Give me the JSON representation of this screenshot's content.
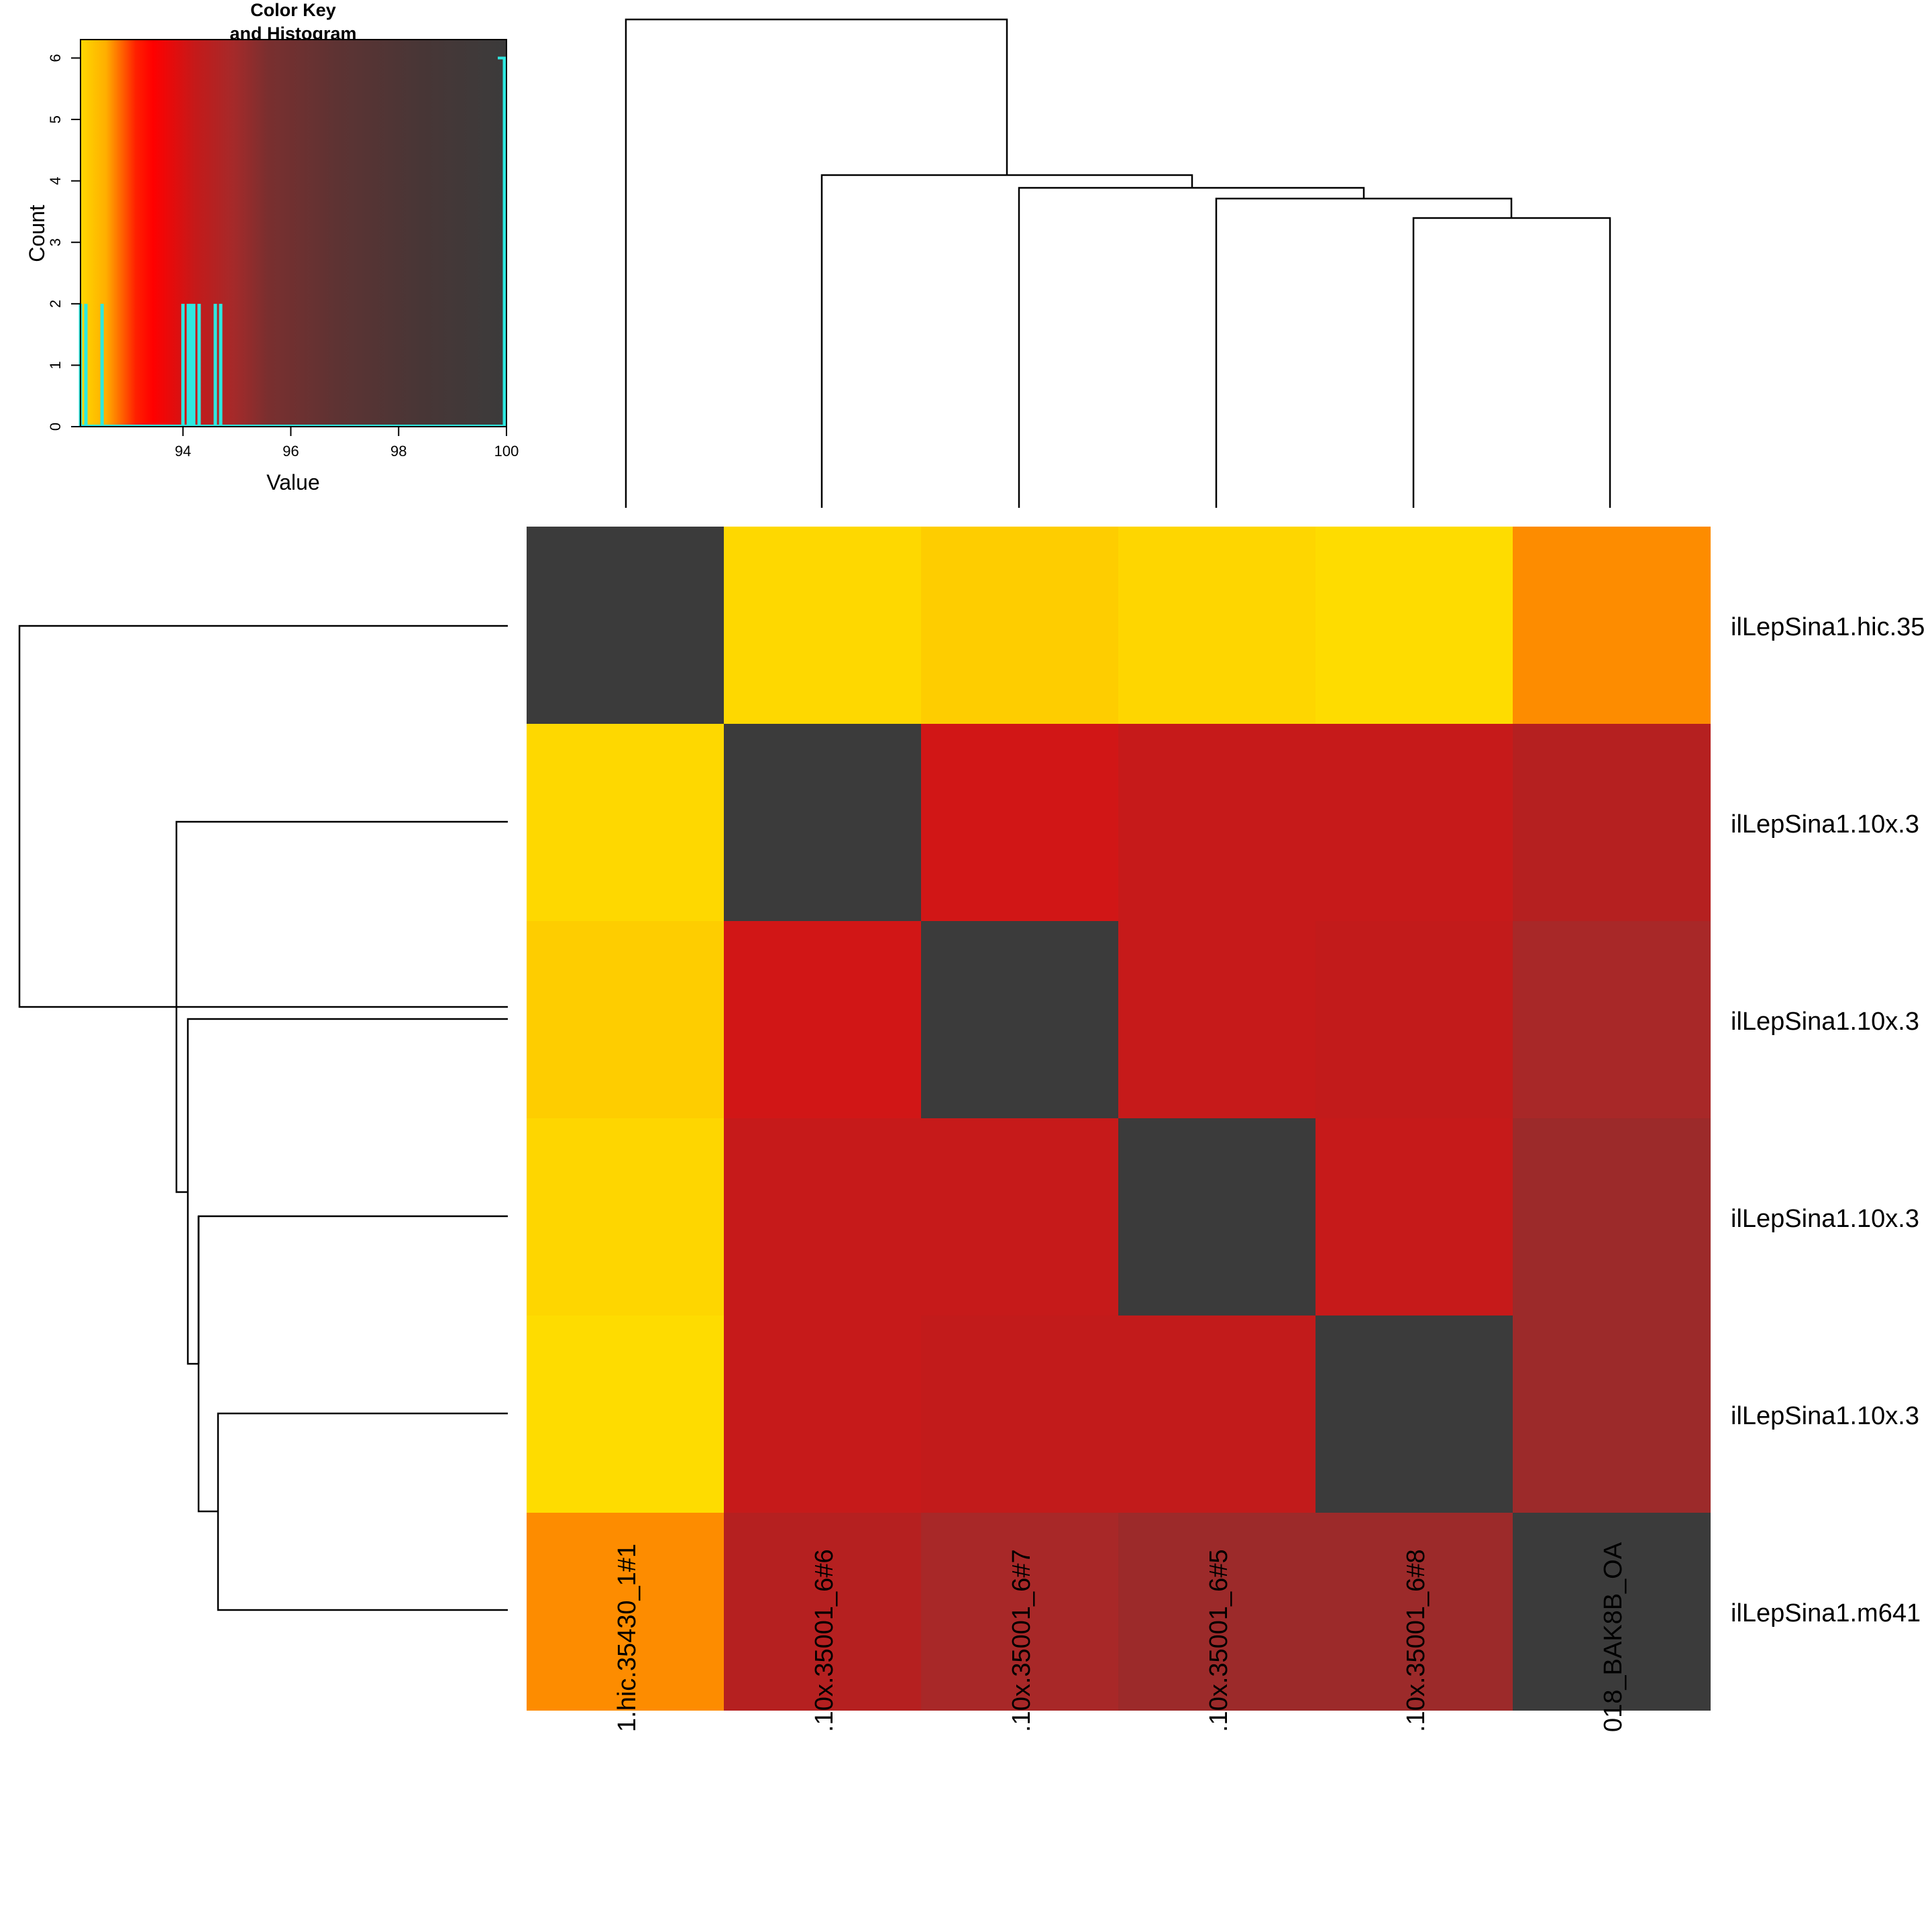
{
  "chart_data": [
    {
      "type": "heatmap",
      "title": "",
      "row_labels": [
        "ilLepSina1.hic.35",
        "ilLepSina1.10x.3",
        "ilLepSina1.10x.3",
        "ilLepSina1.10x.3",
        "ilLepSina1.10x.3",
        "ilLepSina1.m641"
      ],
      "col_labels": [
        "1.hic.35430_1#1",
        ".10x.35001_6#6",
        ".10x.35001_6#7",
        ".10x.35001_6#5",
        ".10x.35001_6#8",
        "018_BAK8B_OA"
      ],
      "values": [
        [
          100.0,
          92.2,
          92.4,
          92.2,
          92.1,
          93.1
        ],
        [
          92.2,
          100.0,
          94.0,
          94.2,
          94.2,
          94.7
        ],
        [
          92.4,
          94.0,
          100.0,
          94.2,
          94.3,
          94.9
        ],
        [
          92.2,
          94.2,
          94.2,
          100.0,
          94.2,
          95.1
        ],
        [
          92.1,
          94.2,
          94.3,
          94.2,
          100.0,
          95.1
        ],
        [
          93.1,
          94.7,
          94.9,
          95.1,
          95.1,
          100.0
        ]
      ],
      "cell_colors": [
        [
          "#3b3b3b",
          "#fed800",
          "#fecd00",
          "#fed600",
          "#fedc00",
          "#fd8c00"
        ],
        [
          "#fed800",
          "#3b3b3b",
          "#d11616",
          "#c61a1a",
          "#c61a1a",
          "#b52020"
        ],
        [
          "#fecd00",
          "#d11616",
          "#3b3b3b",
          "#c61a1a",
          "#c21b1b",
          "#a82828"
        ],
        [
          "#fed600",
          "#c61a1a",
          "#c61a1a",
          "#3b3b3b",
          "#c61a1a",
          "#9c2a2a"
        ],
        [
          "#fedc00",
          "#c61a1a",
          "#c21b1b",
          "#c21b1b",
          "#3b3b3b",
          "#9c2a2a"
        ],
        [
          "#fd8c00",
          "#b52020",
          "#a82828",
          "#9c2a2a",
          "#9c2a2a",
          "#3b3b3b"
        ]
      ],
      "dendrogram": "rows and columns clustered; same tree for both"
    },
    {
      "type": "bar",
      "title": "Color Key\nand Histogram",
      "xlabel": "Value",
      "ylabel": "Count",
      "xlim": [
        92.1,
        100
      ],
      "ylim": [
        0,
        6.3
      ],
      "x_ticks": [
        "94",
        "96",
        "98",
        "100"
      ],
      "y_ticks": [
        "0",
        "1",
        "2",
        "3",
        "4",
        "5",
        "6"
      ],
      "bins": [
        {
          "x": 92.1,
          "count": 2
        },
        {
          "x": 92.2,
          "count": 2
        },
        {
          "x": 92.5,
          "count": 2
        },
        {
          "x": 94.0,
          "count": 2
        },
        {
          "x": 94.1,
          "count": 2
        },
        {
          "x": 94.15,
          "count": 2
        },
        {
          "x": 94.2,
          "count": 2
        },
        {
          "x": 94.3,
          "count": 2
        },
        {
          "x": 94.6,
          "count": 2
        },
        {
          "x": 94.7,
          "count": 2
        },
        {
          "x": 100.0,
          "count": 6
        }
      ],
      "gradient_colors": [
        "#fed800",
        "#ff0000",
        "#a52a2a",
        "#3b3b3b"
      ],
      "histogram_color": "#2ee8e0"
    }
  ]
}
